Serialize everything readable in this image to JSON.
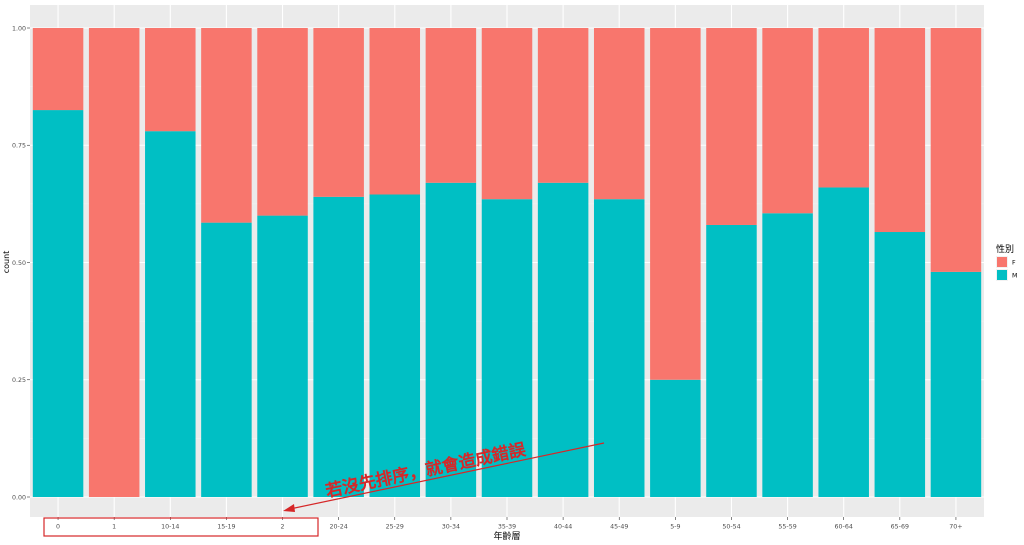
{
  "chart_data": {
    "type": "bar",
    "stacked": "fill",
    "categories": [
      "0",
      "1",
      "10-14",
      "15-19",
      "2",
      "20-24",
      "25-29",
      "30-34",
      "35-39",
      "40-44",
      "45-49",
      "5-9",
      "50-54",
      "55-59",
      "60-64",
      "65-69",
      "70+"
    ],
    "series": [
      {
        "name": "F",
        "color": "#F8766D",
        "values": [
          0.175,
          1.0,
          0.22,
          0.415,
          0.4,
          0.36,
          0.355,
          0.33,
          0.365,
          0.33,
          0.365,
          0.75,
          0.42,
          0.395,
          0.34,
          0.435,
          0.52
        ]
      },
      {
        "name": "M",
        "color": "#00BFC4",
        "values": [
          0.825,
          0.0,
          0.78,
          0.585,
          0.6,
          0.64,
          0.645,
          0.67,
          0.635,
          0.67,
          0.635,
          0.25,
          0.58,
          0.605,
          0.66,
          0.565,
          0.48
        ]
      }
    ],
    "xlabel": "年齡層",
    "ylabel": "count",
    "ylim": [
      0,
      1
    ],
    "yticks": [
      "0.00",
      "0.25",
      "0.50",
      "0.75",
      "1.00"
    ],
    "legend": {
      "title": "性別",
      "position": "right"
    },
    "annotation": {
      "text": "若沒先排序，就會造成錯誤",
      "color": "#d62728"
    }
  }
}
